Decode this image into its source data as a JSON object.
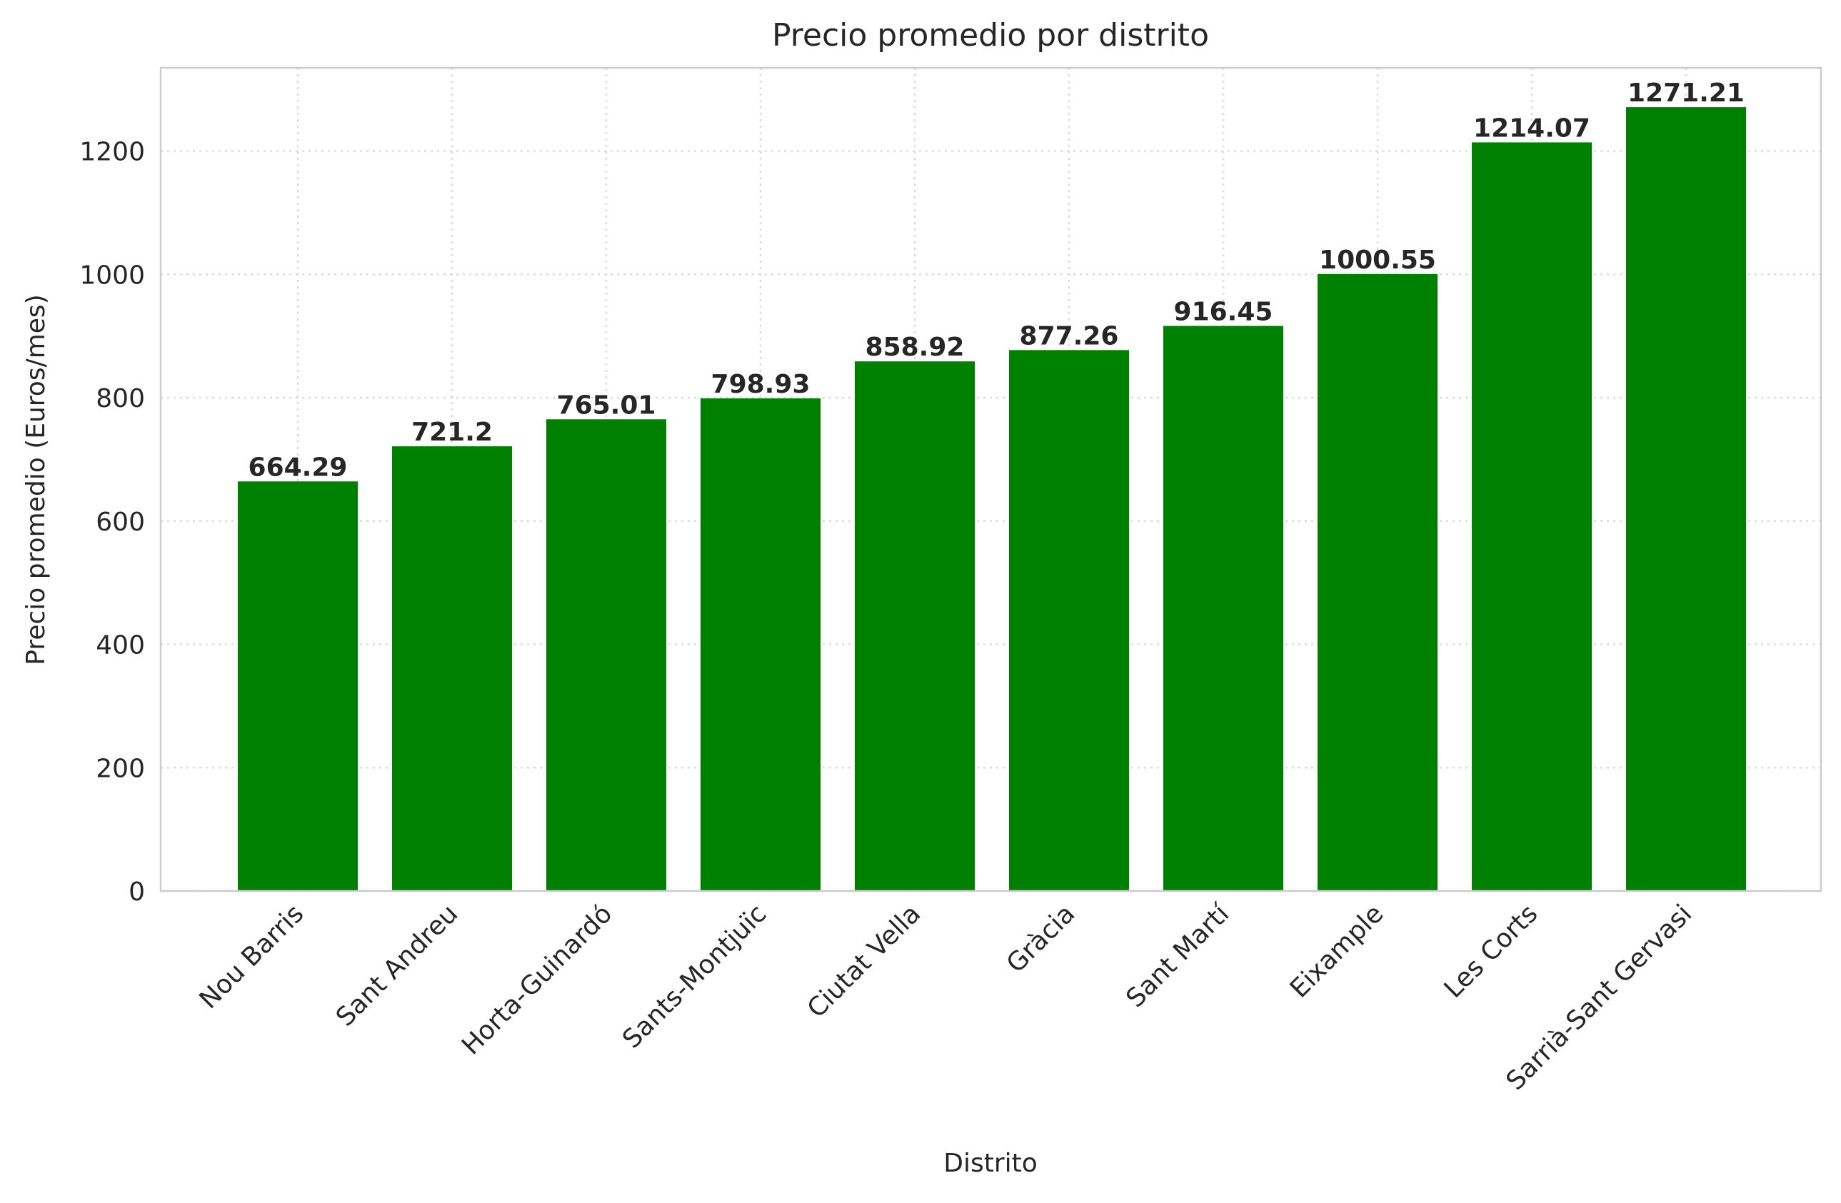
{
  "chart_data": {
    "type": "bar",
    "title": "Precio promedio por distrito",
    "xlabel": "Distrito",
    "ylabel": "Precio promedio (Euros/mes)",
    "categories": [
      "Nou Barris",
      "Sant Andreu",
      "Horta-Guinardó",
      "Sants-Montjuïc",
      "Ciutat Vella",
      "Gràcia",
      "Sant Martí",
      "Eixample",
      "Les Corts",
      "Sarrià-Sant Gervasi"
    ],
    "values": [
      664.29,
      721.2,
      765.01,
      798.93,
      858.92,
      877.26,
      916.45,
      1000.55,
      1214.07,
      1271.21
    ],
    "data_labels": [
      "664.29",
      "721.2",
      "765.01",
      "798.93",
      "858.92",
      "877.26",
      "916.45",
      "1000.55",
      "1214.07",
      "1271.21"
    ],
    "yticks": [
      0,
      200,
      400,
      600,
      800,
      1000,
      1200
    ],
    "ylim": [
      0,
      1335
    ],
    "grid": true,
    "bar_color": "#008000"
  }
}
